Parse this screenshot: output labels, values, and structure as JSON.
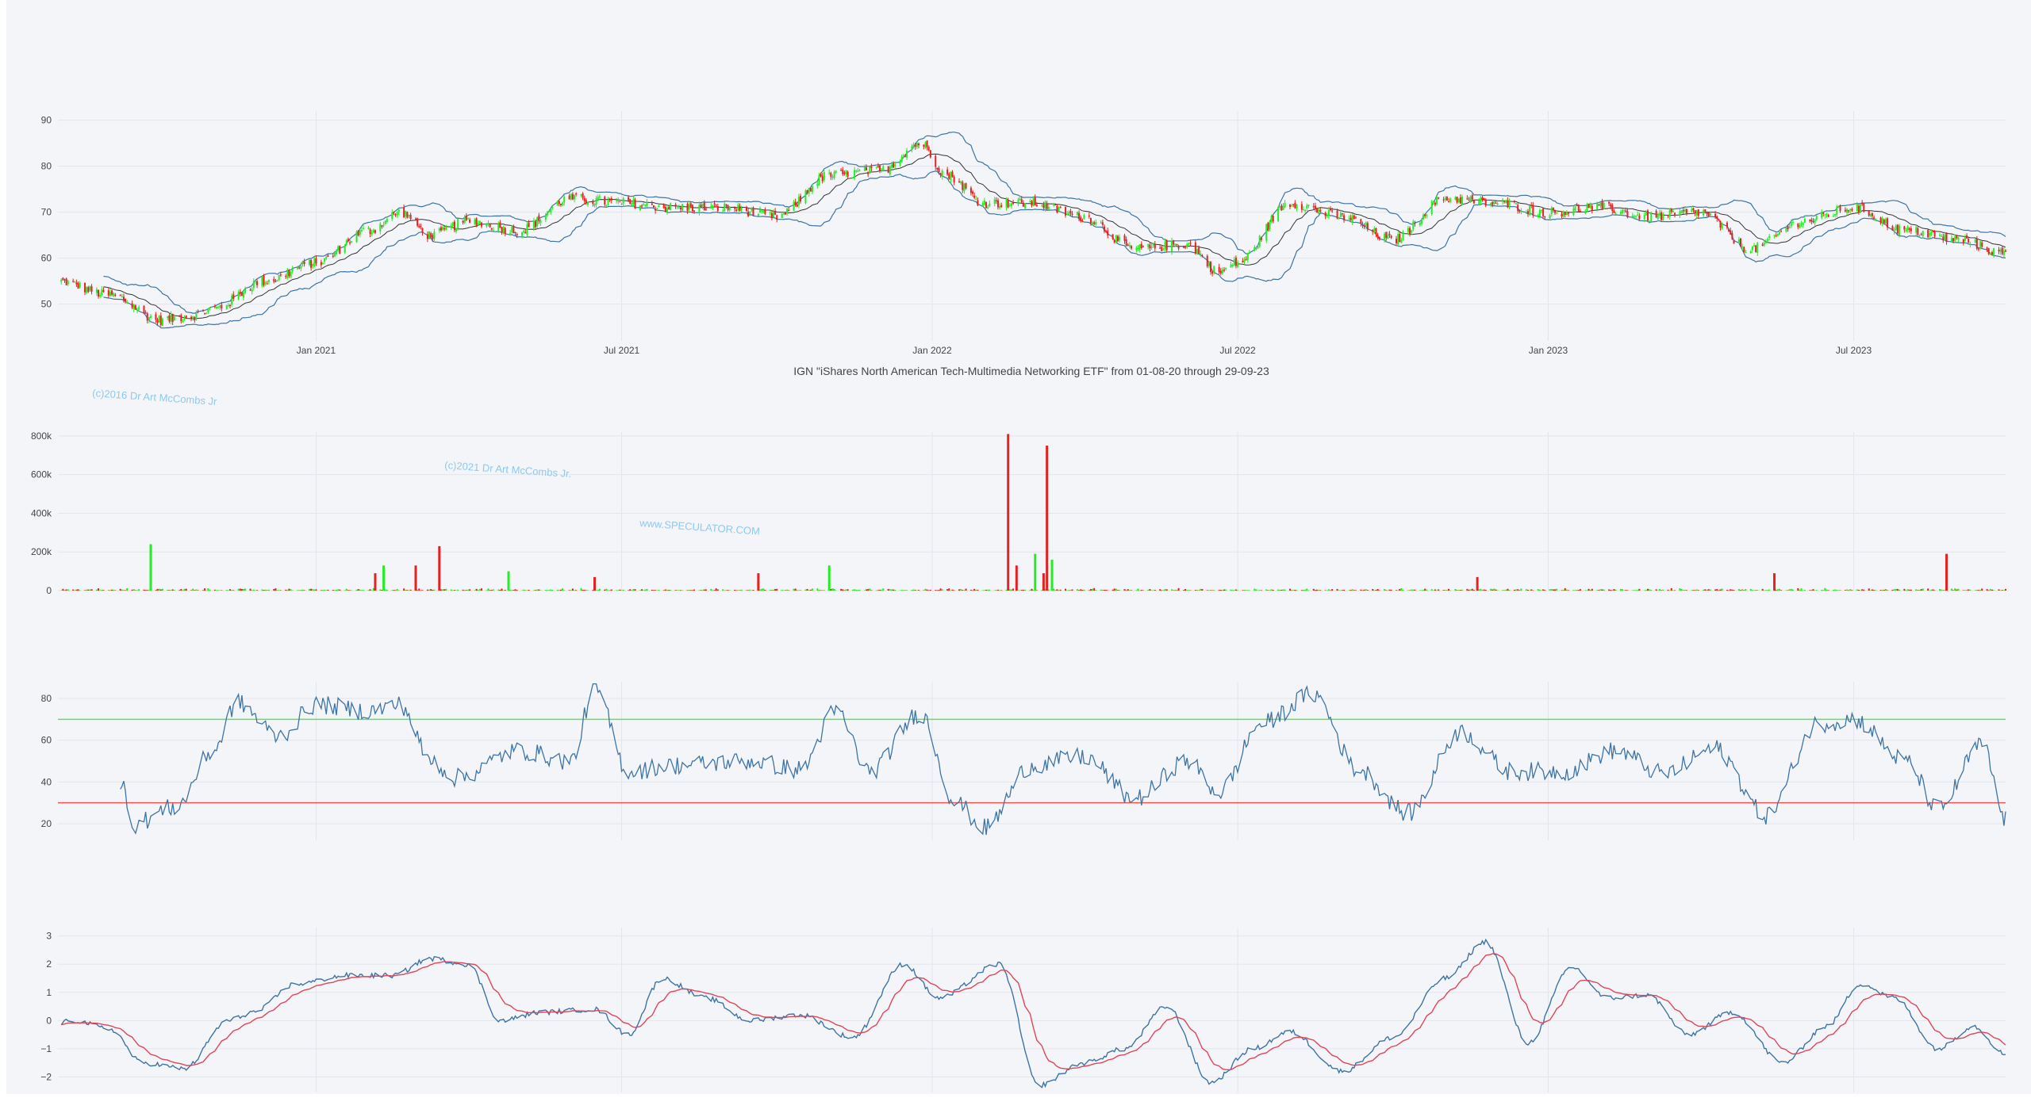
{
  "colors": {
    "background": "#f4f5f8",
    "grid": "#e2e5ea",
    "up": "#22ee22",
    "down": "#e52222",
    "band": "#3d74a6",
    "rsi": "#3d74a6",
    "overbought_line": "#66dd66",
    "oversold_line": "#ee5555",
    "osc_signal": "#e0455a",
    "watermark": "#8ec9ef"
  },
  "title": "IGN \"iShares North American Tech-Multimedia Networking ETF\" from 01-08-20 through 29-09-23",
  "watermarks": [
    "(c)2016 Dr Art McCombs Jr",
    "(c)2021 Dr Art McCombs Jr.",
    "www.SPECULATOR.COM"
  ],
  "x_axis": {
    "start_date": "2020-08-01",
    "end_date": "2023-09-29",
    "tick_labels": [
      "Jan 2021",
      "Jul 2021",
      "Jan 2022",
      "Jul 2022",
      "Jan 2023",
      "Jul 2023"
    ],
    "tick_dates": [
      "2021-01-01",
      "2021-07-01",
      "2022-01-01",
      "2022-07-01",
      "2023-01-01",
      "2023-07-01"
    ]
  },
  "chart_data": [
    {
      "type": "candlestick",
      "name": "price",
      "ylim": [
        42,
        92
      ],
      "yticks": [
        50,
        60,
        70,
        80,
        90
      ],
      "indicators": [
        "bollinger-upper",
        "bollinger-middle",
        "bollinger-lower"
      ],
      "close_anchors": [
        [
          "2020-08-01",
          55
        ],
        [
          "2020-09-01",
          52
        ],
        [
          "2020-10-01",
          46.5
        ],
        [
          "2020-10-20",
          47.5
        ],
        [
          "2020-11-01",
          49
        ],
        [
          "2020-12-01",
          55
        ],
        [
          "2021-01-01",
          59
        ],
        [
          "2021-02-01",
          66
        ],
        [
          "2021-02-20",
          70
        ],
        [
          "2021-03-10",
          65
        ],
        [
          "2021-04-01",
          68
        ],
        [
          "2021-05-01",
          66
        ],
        [
          "2021-06-01",
          73
        ],
        [
          "2021-07-01",
          72
        ],
        [
          "2021-08-01",
          71
        ],
        [
          "2021-09-01",
          71
        ],
        [
          "2021-10-01",
          69
        ],
        [
          "2021-11-01",
          78
        ],
        [
          "2021-12-01",
          79
        ],
        [
          "2021-12-25",
          85
        ],
        [
          "2022-01-10",
          78
        ],
        [
          "2022-02-01",
          72
        ],
        [
          "2022-03-01",
          72
        ],
        [
          "2022-04-01",
          69
        ],
        [
          "2022-05-01",
          62
        ],
        [
          "2022-06-01",
          63
        ],
        [
          "2022-06-20",
          57
        ],
        [
          "2022-07-01",
          59
        ],
        [
          "2022-08-01",
          72
        ],
        [
          "2022-09-01",
          69
        ],
        [
          "2022-10-01",
          64
        ],
        [
          "2022-11-01",
          73
        ],
        [
          "2022-12-01",
          72
        ],
        [
          "2023-01-01",
          70
        ],
        [
          "2023-02-01",
          71
        ],
        [
          "2023-03-01",
          69
        ],
        [
          "2023-04-01",
          70
        ],
        [
          "2023-05-01",
          62
        ],
        [
          "2023-06-01",
          68
        ],
        [
          "2023-07-01",
          71
        ],
        [
          "2023-08-01",
          66
        ],
        [
          "2023-09-01",
          64
        ],
        [
          "2023-09-29",
          61
        ]
      ]
    },
    {
      "type": "bar",
      "name": "volume",
      "ylim": [
        0,
        820000
      ],
      "yticks": [
        0,
        200000,
        400000,
        600000,
        800000
      ],
      "ytick_labels": [
        "0",
        "200k",
        "400k",
        "600k",
        "800k"
      ],
      "spikes": [
        [
          "2020-09-25",
          240000,
          "up"
        ],
        [
          "2021-02-05",
          90000,
          "down"
        ],
        [
          "2021-02-10",
          130000,
          "up"
        ],
        [
          "2021-03-01",
          130000,
          "down"
        ],
        [
          "2021-03-15",
          230000,
          "down"
        ],
        [
          "2021-04-25",
          100000,
          "up"
        ],
        [
          "2021-06-15",
          70000,
          "down"
        ],
        [
          "2021-09-20",
          90000,
          "down"
        ],
        [
          "2021-11-01",
          130000,
          "up"
        ],
        [
          "2022-02-15",
          810000,
          "down"
        ],
        [
          "2022-02-20",
          130000,
          "down"
        ],
        [
          "2022-03-10",
          750000,
          "down"
        ],
        [
          "2022-03-03",
          190000,
          "up"
        ],
        [
          "2022-03-13",
          160000,
          "up"
        ],
        [
          "2022-03-08",
          90000,
          "down"
        ],
        [
          "2022-11-20",
          70000,
          "down"
        ],
        [
          "2023-05-15",
          90000,
          "down"
        ],
        [
          "2023-08-25",
          190000,
          "down"
        ]
      ]
    },
    {
      "type": "line",
      "name": "rsi",
      "ylim": [
        12,
        88
      ],
      "yticks": [
        20,
        40,
        60,
        80
      ],
      "overbought": 70,
      "oversold": 30,
      "anchors": [
        [
          "2020-09-05",
          30
        ],
        [
          "2020-09-10",
          40
        ],
        [
          "2020-09-12",
          19
        ],
        [
          "2020-10-10",
          28
        ],
        [
          "2020-11-01",
          55
        ],
        [
          "2020-11-15",
          78
        ],
        [
          "2020-12-10",
          62
        ],
        [
          "2021-01-01",
          77
        ],
        [
          "2021-02-01",
          74
        ],
        [
          "2021-02-20",
          77
        ],
        [
          "2021-03-10",
          50
        ],
        [
          "2021-03-25",
          42
        ],
        [
          "2021-05-01",
          55
        ],
        [
          "2021-06-01",
          50
        ],
        [
          "2021-06-15",
          85
        ],
        [
          "2021-07-05",
          45
        ],
        [
          "2021-08-01",
          48
        ],
        [
          "2021-09-15",
          50
        ],
        [
          "2021-10-15",
          46
        ],
        [
          "2021-11-05",
          74
        ],
        [
          "2021-11-25",
          45
        ],
        [
          "2021-12-25",
          73
        ],
        [
          "2022-01-15",
          30
        ],
        [
          "2022-02-01",
          18
        ],
        [
          "2022-03-01",
          48
        ],
        [
          "2022-04-01",
          52
        ],
        [
          "2022-05-01",
          32
        ],
        [
          "2022-06-01",
          50
        ],
        [
          "2022-06-20",
          35
        ],
        [
          "2022-07-15",
          68
        ],
        [
          "2022-08-15",
          82
        ],
        [
          "2022-09-10",
          46
        ],
        [
          "2022-10-10",
          25
        ],
        [
          "2022-11-10",
          64
        ],
        [
          "2022-12-10",
          45
        ],
        [
          "2023-01-10",
          45
        ],
        [
          "2023-02-10",
          55
        ],
        [
          "2023-03-10",
          44
        ],
        [
          "2023-04-10",
          56
        ],
        [
          "2023-05-10",
          24
        ],
        [
          "2023-06-10",
          68
        ],
        [
          "2023-07-01",
          70
        ],
        [
          "2023-08-01",
          50
        ],
        [
          "2023-08-20",
          27
        ],
        [
          "2023-09-15",
          58
        ],
        [
          "2023-09-29",
          22
        ]
      ]
    },
    {
      "type": "line",
      "name": "oscillator",
      "ylim": [
        -2.55,
        3.3
      ],
      "yticks": [
        -2,
        -1,
        0,
        1,
        2,
        3
      ],
      "ytick_labels": [
        "−2",
        "−1",
        "0",
        "1",
        "2",
        "3"
      ],
      "anchors": [
        [
          "2020-08-01",
          -0.1
        ],
        [
          "2020-08-10",
          0
        ],
        [
          "2020-09-01",
          -0.3
        ],
        [
          "2020-09-20",
          -1.5
        ],
        [
          "2020-10-15",
          -1.7
        ],
        [
          "2020-11-10",
          0
        ],
        [
          "2020-11-25",
          0.3
        ],
        [
          "2020-12-20",
          1.3
        ],
        [
          "2021-01-20",
          1.6
        ],
        [
          "2021-02-15",
          1.6
        ],
        [
          "2021-03-10",
          2.2
        ],
        [
          "2021-04-01",
          2.0
        ],
        [
          "2021-04-20",
          0
        ],
        [
          "2021-05-15",
          0.3
        ],
        [
          "2021-06-15",
          0.4
        ],
        [
          "2021-07-05",
          -0.5
        ],
        [
          "2021-07-25",
          1.5
        ],
        [
          "2021-08-20",
          0.8
        ],
        [
          "2021-09-15",
          0
        ],
        [
          "2021-10-15",
          0.2
        ],
        [
          "2021-11-15",
          -0.6
        ],
        [
          "2021-12-15",
          2.0
        ],
        [
          "2022-01-05",
          0.8
        ],
        [
          "2022-02-10",
          2.0
        ],
        [
          "2022-03-05",
          -2.3
        ],
        [
          "2022-04-01",
          -1.5
        ],
        [
          "2022-04-25",
          -1.0
        ],
        [
          "2022-05-20",
          0.5
        ],
        [
          "2022-06-15",
          -2.2
        ],
        [
          "2022-07-10",
          -1.0
        ],
        [
          "2022-08-01",
          -0.4
        ],
        [
          "2022-09-01",
          -1.8
        ],
        [
          "2022-10-01",
          -0.6
        ],
        [
          "2022-11-01",
          1.5
        ],
        [
          "2022-11-25",
          2.8
        ],
        [
          "2022-12-20",
          -0.8
        ],
        [
          "2023-01-15",
          1.9
        ],
        [
          "2023-02-05",
          0.8
        ],
        [
          "2023-03-01",
          0.9
        ],
        [
          "2023-03-25",
          -0.5
        ],
        [
          "2023-04-20",
          0.3
        ],
        [
          "2023-05-20",
          -1.5
        ],
        [
          "2023-06-15",
          -0.2
        ],
        [
          "2023-07-05",
          1.3
        ],
        [
          "2023-07-25",
          0.8
        ],
        [
          "2023-08-20",
          -1.0
        ],
        [
          "2023-09-10",
          -0.2
        ],
        [
          "2023-09-29",
          -1.2
        ]
      ]
    }
  ]
}
